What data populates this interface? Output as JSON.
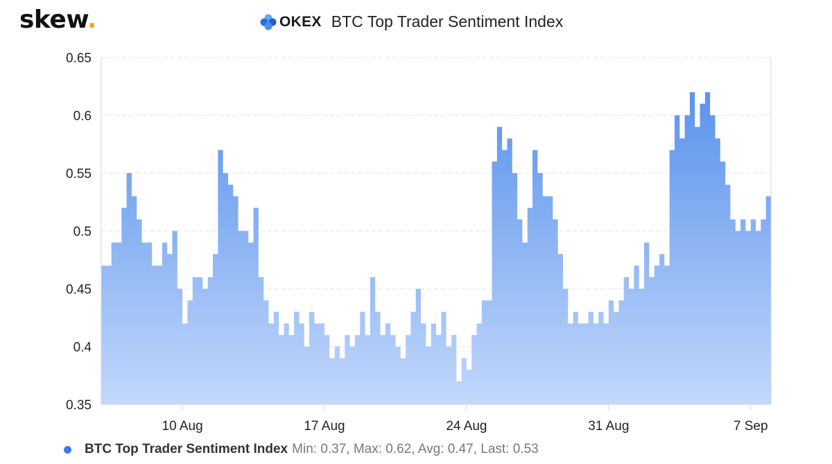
{
  "brand": {
    "name": "skew",
    "dot": "."
  },
  "header": {
    "exchange_logo_text": "OKEX",
    "title": "BTC Top Trader Sentiment Index"
  },
  "legend": {
    "series_name": "BTC Top Trader Sentiment Index",
    "stats": "Min: 0.37, Max: 0.62, Avg: 0.47, Last: 0.53",
    "color": "#3b7de8"
  },
  "chart_data": {
    "type": "area",
    "title": "BTC Top Trader Sentiment Index",
    "xlabel": "",
    "ylabel": "",
    "x_range": [
      "2020-08-06",
      "2020-09-08"
    ],
    "ylim": [
      0.35,
      0.65
    ],
    "y_ticks": [
      0.35,
      0.4,
      0.45,
      0.5,
      0.55,
      0.6,
      0.65
    ],
    "x_ticks": [
      {
        "date": "2020-08-10",
        "label": "10 Aug"
      },
      {
        "date": "2020-08-17",
        "label": "17 Aug"
      },
      {
        "date": "2020-08-24",
        "label": "24 Aug"
      },
      {
        "date": "2020-08-31",
        "label": "31 Aug"
      },
      {
        "date": "2020-09-07",
        "label": "7 Sep"
      }
    ],
    "grid": true,
    "series": [
      {
        "name": "BTC Top Trader Sentiment Index",
        "color_top": "#5b93ec",
        "color_bottom": "#c2d8fb",
        "points": [
          [
            "2020-08-06",
            0.47
          ],
          [
            "2020-08-06T12:00",
            0.49
          ],
          [
            "2020-08-07",
            0.52
          ],
          [
            "2020-08-07T06:00",
            0.55
          ],
          [
            "2020-08-07T12:00",
            0.53
          ],
          [
            "2020-08-07T18:00",
            0.51
          ],
          [
            "2020-08-08",
            0.49
          ],
          [
            "2020-08-08T12:00",
            0.47
          ],
          [
            "2020-08-09",
            0.49
          ],
          [
            "2020-08-09T06:00",
            0.48
          ],
          [
            "2020-08-09T12:00",
            0.5
          ],
          [
            "2020-08-09T18:00",
            0.45
          ],
          [
            "2020-08-10",
            0.42
          ],
          [
            "2020-08-10T06:00",
            0.44
          ],
          [
            "2020-08-10T12:00",
            0.46
          ],
          [
            "2020-08-11",
            0.45
          ],
          [
            "2020-08-11T06:00",
            0.46
          ],
          [
            "2020-08-11T12:00",
            0.48
          ],
          [
            "2020-08-11T18:00",
            0.57
          ],
          [
            "2020-08-12",
            0.55
          ],
          [
            "2020-08-12T06:00",
            0.54
          ],
          [
            "2020-08-12T12:00",
            0.53
          ],
          [
            "2020-08-12T18:00",
            0.5
          ],
          [
            "2020-08-13",
            0.5
          ],
          [
            "2020-08-13T06:00",
            0.49
          ],
          [
            "2020-08-13T12:00",
            0.52
          ],
          [
            "2020-08-13T18:00",
            0.46
          ],
          [
            "2020-08-14",
            0.44
          ],
          [
            "2020-08-14T06:00",
            0.42
          ],
          [
            "2020-08-14T12:00",
            0.43
          ],
          [
            "2020-08-14T18:00",
            0.41
          ],
          [
            "2020-08-15",
            0.42
          ],
          [
            "2020-08-15T06:00",
            0.41
          ],
          [
            "2020-08-15T12:00",
            0.43
          ],
          [
            "2020-08-15T18:00",
            0.42
          ],
          [
            "2020-08-16",
            0.4
          ],
          [
            "2020-08-16T06:00",
            0.43
          ],
          [
            "2020-08-16T12:00",
            0.42
          ],
          [
            "2020-08-16T18:00",
            0.42
          ],
          [
            "2020-08-17",
            0.41
          ],
          [
            "2020-08-17T06:00",
            0.39
          ],
          [
            "2020-08-17T12:00",
            0.4
          ],
          [
            "2020-08-17T18:00",
            0.39
          ],
          [
            "2020-08-18",
            0.41
          ],
          [
            "2020-08-18T06:00",
            0.4
          ],
          [
            "2020-08-18T12:00",
            0.41
          ],
          [
            "2020-08-18T18:00",
            0.43
          ],
          [
            "2020-08-19",
            0.41
          ],
          [
            "2020-08-19T06:00",
            0.46
          ],
          [
            "2020-08-19T12:00",
            0.43
          ],
          [
            "2020-08-19T18:00",
            0.41
          ],
          [
            "2020-08-20",
            0.42
          ],
          [
            "2020-08-20T06:00",
            0.41
          ],
          [
            "2020-08-20T12:00",
            0.4
          ],
          [
            "2020-08-20T18:00",
            0.39
          ],
          [
            "2020-08-21",
            0.41
          ],
          [
            "2020-08-21T06:00",
            0.43
          ],
          [
            "2020-08-21T12:00",
            0.45
          ],
          [
            "2020-08-21T18:00",
            0.42
          ],
          [
            "2020-08-22",
            0.4
          ],
          [
            "2020-08-22T06:00",
            0.42
          ],
          [
            "2020-08-22T12:00",
            0.41
          ],
          [
            "2020-08-22T18:00",
            0.43
          ],
          [
            "2020-08-23",
            0.4
          ],
          [
            "2020-08-23T06:00",
            0.41
          ],
          [
            "2020-08-23T12:00",
            0.37
          ],
          [
            "2020-08-23T18:00",
            0.39
          ],
          [
            "2020-08-24",
            0.38
          ],
          [
            "2020-08-24T06:00",
            0.41
          ],
          [
            "2020-08-24T12:00",
            0.42
          ],
          [
            "2020-08-24T18:00",
            0.44
          ],
          [
            "2020-08-25",
            0.44
          ],
          [
            "2020-08-25T06:00",
            0.56
          ],
          [
            "2020-08-25T12:00",
            0.59
          ],
          [
            "2020-08-25T18:00",
            0.57
          ],
          [
            "2020-08-26",
            0.58
          ],
          [
            "2020-08-26T06:00",
            0.55
          ],
          [
            "2020-08-26T12:00",
            0.51
          ],
          [
            "2020-08-26T18:00",
            0.49
          ],
          [
            "2020-08-27",
            0.52
          ],
          [
            "2020-08-27T06:00",
            0.57
          ],
          [
            "2020-08-27T12:00",
            0.55
          ],
          [
            "2020-08-27T18:00",
            0.53
          ],
          [
            "2020-08-28",
            0.53
          ],
          [
            "2020-08-28T06:00",
            0.51
          ],
          [
            "2020-08-28T12:00",
            0.48
          ],
          [
            "2020-08-28T18:00",
            0.45
          ],
          [
            "2020-08-29",
            0.42
          ],
          [
            "2020-08-29T06:00",
            0.43
          ],
          [
            "2020-08-29T12:00",
            0.42
          ],
          [
            "2020-08-29T18:00",
            0.42
          ],
          [
            "2020-08-30",
            0.43
          ],
          [
            "2020-08-30T06:00",
            0.42
          ],
          [
            "2020-08-30T12:00",
            0.43
          ],
          [
            "2020-08-30T18:00",
            0.42
          ],
          [
            "2020-08-31",
            0.44
          ],
          [
            "2020-08-31T06:00",
            0.43
          ],
          [
            "2020-08-31T12:00",
            0.44
          ],
          [
            "2020-08-31T18:00",
            0.46
          ],
          [
            "2020-09-01",
            0.45
          ],
          [
            "2020-09-01T06:00",
            0.47
          ],
          [
            "2020-09-01T12:00",
            0.45
          ],
          [
            "2020-09-01T18:00",
            0.49
          ],
          [
            "2020-09-02",
            0.46
          ],
          [
            "2020-09-02T06:00",
            0.47
          ],
          [
            "2020-09-02T12:00",
            0.48
          ],
          [
            "2020-09-02T18:00",
            0.47
          ],
          [
            "2020-09-03",
            0.57
          ],
          [
            "2020-09-03T06:00",
            0.6
          ],
          [
            "2020-09-03T12:00",
            0.58
          ],
          [
            "2020-09-03T18:00",
            0.6
          ],
          [
            "2020-09-04",
            0.62
          ],
          [
            "2020-09-04T06:00",
            0.59
          ],
          [
            "2020-09-04T12:00",
            0.61
          ],
          [
            "2020-09-04T18:00",
            0.62
          ],
          [
            "2020-09-05",
            0.6
          ],
          [
            "2020-09-05T06:00",
            0.58
          ],
          [
            "2020-09-05T12:00",
            0.56
          ],
          [
            "2020-09-05T18:00",
            0.54
          ],
          [
            "2020-09-06",
            0.51
          ],
          [
            "2020-09-06T06:00",
            0.5
          ],
          [
            "2020-09-06T12:00",
            0.51
          ],
          [
            "2020-09-06T18:00",
            0.5
          ],
          [
            "2020-09-07",
            0.51
          ],
          [
            "2020-09-07T06:00",
            0.5
          ],
          [
            "2020-09-07T12:00",
            0.51
          ],
          [
            "2020-09-07T18:00",
            0.53
          ]
        ]
      }
    ]
  }
}
